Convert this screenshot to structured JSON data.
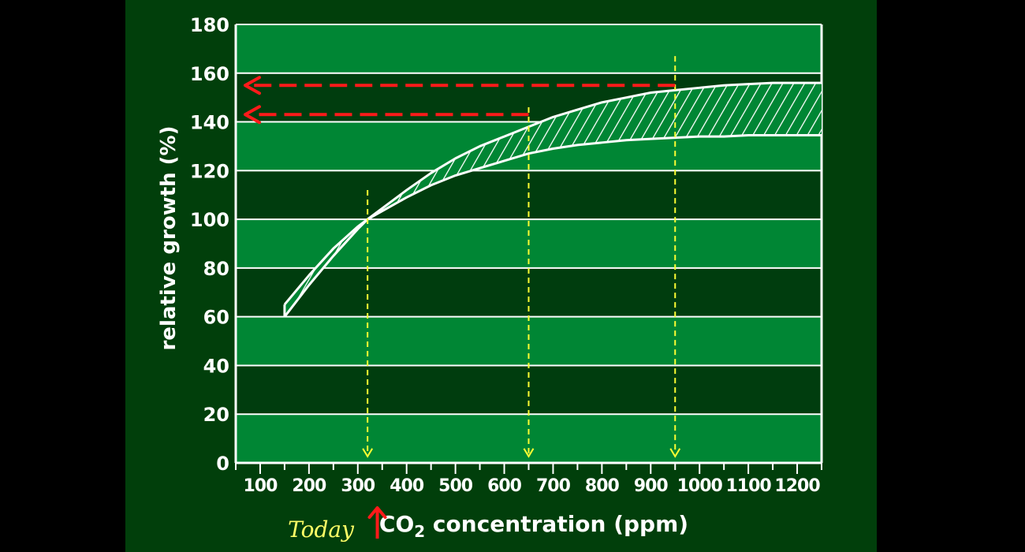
{
  "colors": {
    "page_background": "#000000",
    "panel_background": "#013f0b",
    "band_light": "#008634",
    "band_dark": "#003d0e",
    "grid": "#ffffff",
    "ink": "#ffffff",
    "marker_arrow": "#ff1a1a",
    "guide_line": "#ffff33",
    "today_text": "#ffff66"
  },
  "chart_data": {
    "type": "area",
    "ylabel": "relative growth (%)",
    "xlabel_prefix": "CO",
    "xlabel_subscript": "2",
    "xlabel_suffix": " concentration (ppm)",
    "xlim": [
      50,
      1250
    ],
    "ylim": [
      0,
      180
    ],
    "x_ticks": [
      100,
      200,
      300,
      400,
      500,
      600,
      700,
      800,
      900,
      1000,
      1100,
      1200
    ],
    "y_ticks": [
      0,
      20,
      40,
      60,
      80,
      100,
      120,
      140,
      160,
      180
    ],
    "minor_tick_step_x": 50,
    "grid": true,
    "banding": "alternating horizontal bands every 20 units",
    "band": {
      "upper": {
        "x": [
          150,
          200,
          250,
          300,
          320,
          400,
          450,
          500,
          550,
          600,
          650,
          700,
          750,
          800,
          850,
          900,
          950,
          1000,
          1050,
          1100,
          1150,
          1200,
          1250
        ],
        "y": [
          65,
          77,
          88,
          97,
          100,
          112,
          119,
          125,
          130,
          134,
          138,
          142,
          145,
          148,
          150,
          152,
          153,
          154,
          155,
          155.5,
          156,
          156,
          156
        ]
      },
      "lower": {
        "x": [
          150,
          200,
          250,
          300,
          320,
          400,
          450,
          500,
          550,
          600,
          650,
          700,
          750,
          800,
          850,
          900,
          950,
          1000,
          1050,
          1100,
          1150,
          1200,
          1250
        ],
        "y": [
          60,
          73,
          85,
          96,
          100,
          109,
          114,
          118,
          121,
          124,
          127,
          129,
          130.5,
          131.5,
          132.5,
          133,
          133.5,
          134,
          134,
          134.5,
          134.5,
          134.5,
          134.5
        ]
      },
      "fill": "hatched"
    },
    "reference_lines": [
      {
        "x": 320,
        "y_top": 112,
        "y_bottom": 2
      },
      {
        "x": 650,
        "y_top": 146,
        "y_bottom": 2
      },
      {
        "x": 950,
        "y_top": 167,
        "y_bottom": 2
      }
    ],
    "value_arrows": [
      {
        "from_x": 950,
        "y": 155
      },
      {
        "from_x": 650,
        "y": 143
      }
    ],
    "today_marker": {
      "label": "Today",
      "x": 340
    }
  }
}
